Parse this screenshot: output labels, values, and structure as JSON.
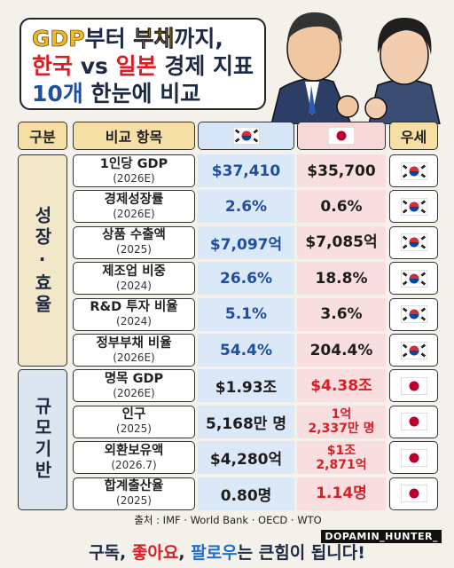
{
  "title": {
    "lines": [
      [
        "GDP",
        "부터 ",
        "부채",
        "까지,"
      ],
      [
        "한국",
        " vs ",
        "일본",
        " 경제 지표"
      ],
      [
        "10개",
        " 한눈에 비교"
      ]
    ]
  },
  "table": {
    "header": [
      "구분",
      "비교 항목",
      "우세"
    ],
    "groups": [
      {
        "label": "성장·효율",
        "rows": [
          {
            "item": "1인당 GDP",
            "period": "(2026E)",
            "korea": "$37,410",
            "japan": "$35,700"
          },
          {
            "item": "경제성장률",
            "period": "(2026E)",
            "korea": "2.6%",
            "japan": "0.6%"
          },
          {
            "item": "상품 수출액",
            "period": "(2025)",
            "korea": "$7,097억",
            "japan": "$7,085억"
          },
          {
            "item": "제조업 비중",
            "period": "(2024)",
            "korea": "26.6%",
            "japan": "18.8%"
          },
          {
            "item": "R&D 투자 비율",
            "period": "(2024)",
            "korea": "5.1%",
            "japan": "3.6%"
          },
          {
            "item": "정부부채 비율",
            "period": "(2026E)",
            "korea": "54.4%",
            "japan": "204.4%"
          }
        ]
      },
      {
        "label": "규모기반",
        "rows": [
          {
            "item": "명목 GDP",
            "period": "(2026E)",
            "korea": "$1.93조",
            "japan": "$4.38조"
          },
          {
            "item": "인구",
            "period": "(2025)",
            "korea": "5,168만 명",
            "japan": "1억\n2,337만 명"
          },
          {
            "item": "외환보유액",
            "period": "(2026.7)",
            "korea": "$4,280억",
            "japan": "$1조\n2,871억"
          },
          {
            "item": "합계출산율",
            "period": "(2025)",
            "korea": "0.80명",
            "japan": "1.14명"
          }
        ]
      }
    ]
  },
  "source": "출처 : IMF · World Bank · OECD · WTO",
  "watermark": "DOPAMIN_HUNTER_",
  "footer": [
    "구독",
    ", ",
    "좋아요",
    ", ",
    "팔로우",
    "는 큰힘이 됩니다!"
  ]
}
